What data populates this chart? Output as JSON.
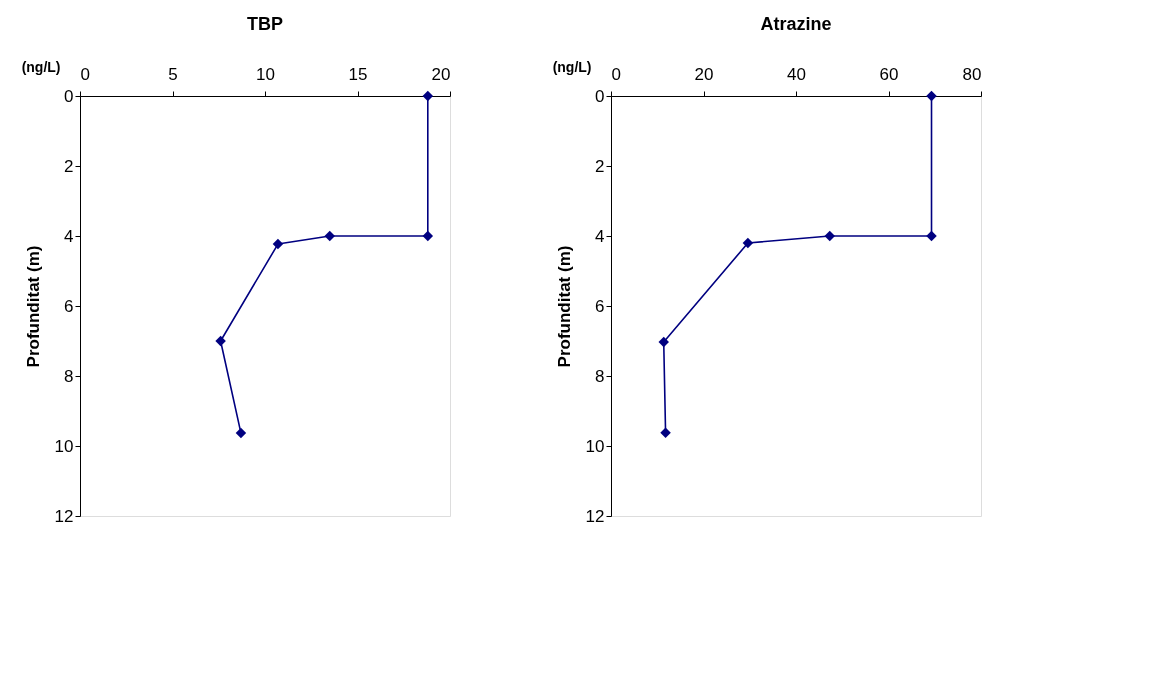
{
  "chart_data": [
    {
      "type": "line",
      "title": "TBP",
      "xlabel": "(ng/L)",
      "ylabel": "Profunditat (m)",
      "xlim": [
        0,
        20
      ],
      "xticks": [
        0,
        5,
        10,
        15,
        20
      ],
      "ylim": [
        12,
        0
      ],
      "yticks": [
        0,
        2,
        4,
        6,
        8,
        10,
        12
      ],
      "grid": false,
      "legend": false,
      "marker": "diamond",
      "line_style": "solid",
      "series": [
        {
          "color": "#000080",
          "x": [
            18.8,
            18.8,
            13.5,
            10.7,
            7.6,
            8.7
          ],
          "values": [
            0,
            4,
            4,
            4.23,
            7.0,
            9.63
          ]
        }
      ]
    },
    {
      "type": "line",
      "title": "Atrazine",
      "xlabel": "(ng/L)",
      "ylabel": "Profunditat (m)",
      "xlim": [
        0,
        80
      ],
      "xticks": [
        0,
        20,
        40,
        60,
        80
      ],
      "ylim": [
        12,
        0
      ],
      "yticks": [
        0,
        2,
        4,
        6,
        8,
        10,
        12
      ],
      "grid": false,
      "legend": false,
      "marker": "diamond",
      "line_style": "solid",
      "series": [
        {
          "color": "#000080",
          "x": [
            69.3,
            69.3,
            47.3,
            29.6,
            11.4,
            11.8
          ],
          "values": [
            0,
            4,
            4,
            4.2,
            7.03,
            9.62
          ]
        }
      ]
    }
  ]
}
